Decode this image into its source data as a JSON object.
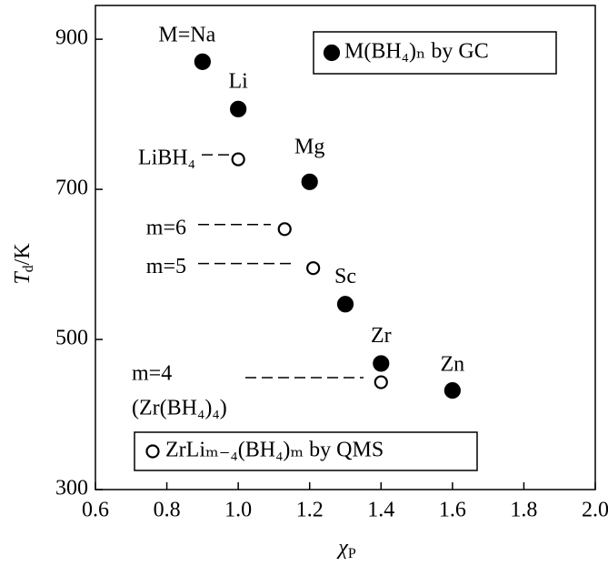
{
  "chart_data": {
    "type": "scatter",
    "x_label": [
      "χ",
      "P"
    ],
    "y_label": [
      "T",
      "d",
      "/K"
    ],
    "xlim": [
      0.6,
      2.0
    ],
    "xticks": [
      0.6,
      0.8,
      {
        "value": 1,
        "label": "1.0"
      },
      1.2,
      1.4,
      1.6,
      1.8,
      {
        "value": 2,
        "label": "2.0"
      }
    ],
    "ylim": [
      300,
      945
    ],
    "yticks": [
      300,
      500,
      700,
      900
    ],
    "series": [
      {
        "name": "M(BH₄)ₙ by GC",
        "marker": "filled",
        "color": "#000000",
        "x": [
          0.9,
          1.0,
          1.2,
          1.3,
          1.4,
          1.6
        ],
        "values": [
          870,
          807,
          710,
          547,
          468,
          432
        ],
        "labels": [
          "M=Na",
          "Li",
          "Mg",
          "Sc",
          "Zr",
          "Zn"
        ]
      },
      {
        "name": "ZrLiₘ₋₄(BH₄)ₘ by QMS",
        "marker": "open",
        "color": "#000000",
        "x": [
          1.0,
          1.13,
          1.21,
          1.4
        ],
        "values": [
          740,
          647,
          595,
          443
        ],
        "labels": [
          "LiBH₄",
          "m=6",
          "m=5",
          "m=4"
        ]
      }
    ],
    "annotation": "(Zr(BH₄)₄)"
  }
}
